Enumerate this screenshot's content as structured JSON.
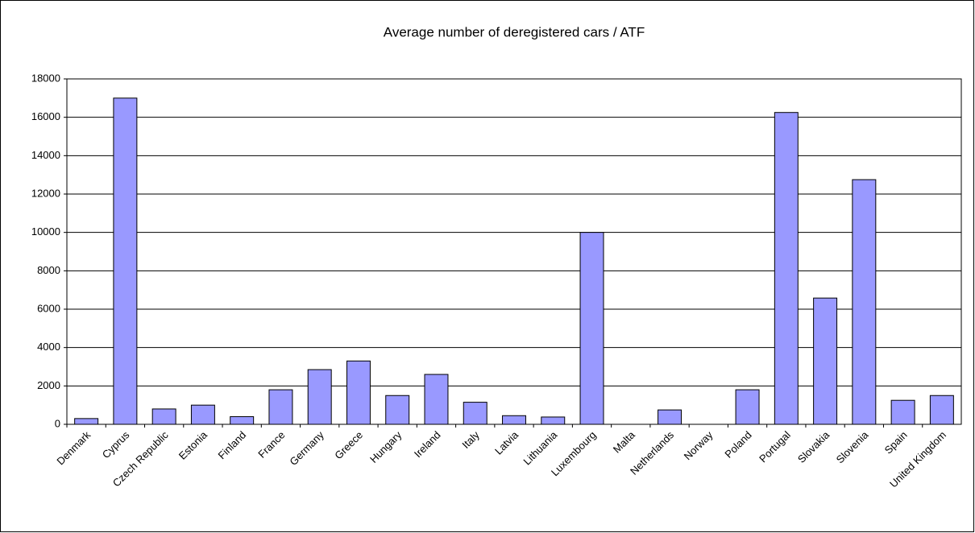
{
  "chart_data": {
    "type": "bar",
    "title": "Average number of deregistered cars / ATF",
    "categories": [
      "Denmark",
      "Cyprus",
      "Czech Republic",
      "Estonia",
      "Finland",
      "France",
      "Germany",
      "Greece",
      "Hungary",
      "Ireland",
      "Italy",
      "Latvia",
      "Lithuania",
      "Luxembourg",
      "Malta",
      "Netherlands",
      "Norway",
      "Poland",
      "Portugal",
      "Slovakia",
      "Slovenia",
      "Spain",
      "United Kingdom"
    ],
    "values": [
      300,
      17000,
      800,
      1000,
      400,
      1800,
      2850,
      3300,
      1500,
      2600,
      1150,
      450,
      380,
      10000,
      0,
      750,
      0,
      1800,
      16250,
      6580,
      12750,
      1250,
      1500
    ],
    "color": "#9999ff",
    "ylim": [
      0,
      18000
    ],
    "yticks": [
      0,
      2000,
      4000,
      6000,
      8000,
      10000,
      12000,
      14000,
      16000,
      18000
    ],
    "grid": true
  }
}
